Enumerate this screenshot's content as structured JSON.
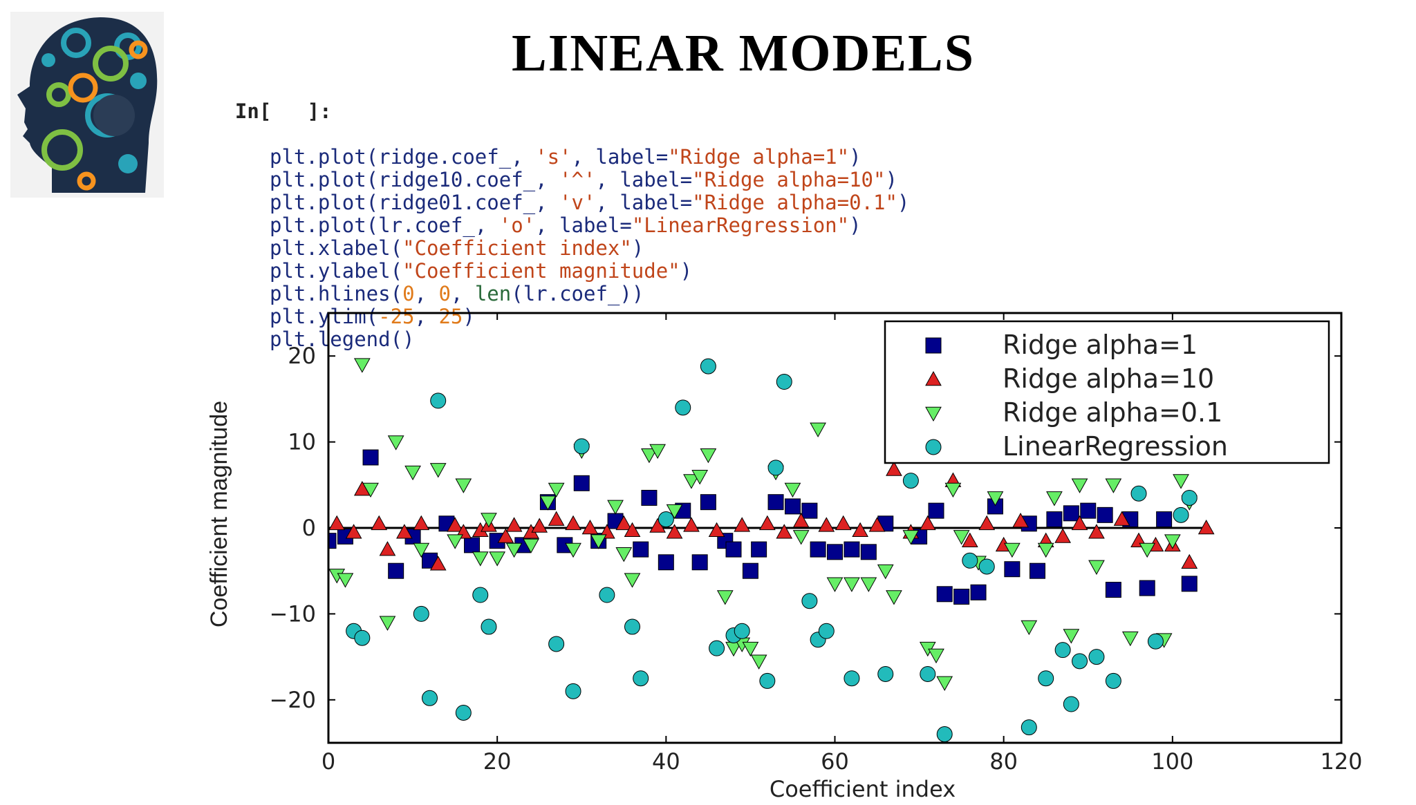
{
  "slide": {
    "title": "LINEAR MODELS"
  },
  "code": {
    "prompt": "In[   ]:",
    "lines": [
      {
        "pre": "plt.plot(ridge.coef_, ",
        "str": "'s'",
        "mid": ", label=",
        "str2": "\"Ridge alpha=1\"",
        "post": ")"
      },
      {
        "pre": "plt.plot(ridge10.coef_, ",
        "str": "'^'",
        "mid": ", label=",
        "str2": "\"Ridge alpha=10\"",
        "post": ")"
      },
      {
        "pre": "plt.plot(ridge01.coef_, ",
        "str": "'v'",
        "mid": ", label=",
        "str2": "\"Ridge alpha=0.1\"",
        "post": ")"
      },
      {
        "pre": "plt.plot(lr.coef_, ",
        "str": "'o'",
        "mid": ", label=",
        "str2": "\"LinearRegression\"",
        "post": ")"
      },
      {
        "pre": "plt.xlabel(",
        "str": "\"Coefficient index\"",
        "mid": "",
        "str2": "",
        "post": ")"
      },
      {
        "pre": "plt.ylabel(",
        "str": "\"Coefficient magnitude\"",
        "mid": "",
        "str2": "",
        "post": ")"
      },
      {
        "pre": "plt.hlines(",
        "num": "0",
        "mid": ", ",
        "num2": "0",
        "mid2": ", ",
        "fn": "len",
        "post": "(lr.coef_))"
      },
      {
        "pre": "plt.ylim(",
        "num": "-25",
        "mid": ", ",
        "num2": "25",
        "post": ")"
      },
      {
        "pre": "plt.legend()",
        "str": "",
        "mid": "",
        "str2": "",
        "post": ""
      }
    ]
  },
  "chart_data": {
    "type": "scatter",
    "xlabel": "Coefficient index",
    "ylabel": "Coefficient magnitude",
    "xlim": [
      0,
      120
    ],
    "ylim": [
      -25,
      25
    ],
    "xticks": [
      0,
      20,
      40,
      60,
      80,
      100,
      120
    ],
    "yticks": [
      -20,
      -10,
      0,
      10,
      20
    ],
    "xtick_labels": [
      "0",
      "20",
      "40",
      "60",
      "80",
      "100",
      "120"
    ],
    "ytick_labels": [
      "−20",
      "−10",
      "0",
      "10",
      "20"
    ],
    "hline": {
      "y": 0,
      "xmin": 0,
      "xmax": 104
    },
    "legend_position": "top-right",
    "series": [
      {
        "name": "Ridge alpha=1",
        "marker": "square",
        "color": "#00008b",
        "x": [
          0,
          2,
          5,
          8,
          10,
          12,
          14,
          17,
          20,
          23,
          26,
          28,
          30,
          32,
          34,
          37,
          38,
          40,
          42,
          44,
          45,
          47,
          48,
          50,
          51,
          53,
          55,
          57,
          58,
          60,
          62,
          64,
          66,
          70,
          72,
          73,
          75,
          77,
          79,
          81,
          83,
          84,
          86,
          88,
          90,
          92,
          93,
          95,
          97,
          99,
          102
        ],
        "y": [
          -1.5,
          -1,
          8.2,
          -5,
          -1,
          -3.8,
          0.5,
          -2,
          -1.5,
          -2,
          3,
          -2,
          5.2,
          -1.5,
          0.8,
          -2.5,
          3.5,
          -4,
          2,
          -4,
          3,
          -1.5,
          -2.5,
          -5,
          -2.5,
          3,
          2.5,
          2,
          -2.5,
          -2.8,
          -2.5,
          -2.8,
          0.5,
          -1,
          2,
          -7.7,
          -8,
          -7.5,
          2.5,
          -4.8,
          0.5,
          -5,
          1,
          1.7,
          2,
          1.5,
          -7.2,
          1,
          -7,
          1,
          -6.5
        ]
      },
      {
        "name": "Ridge alpha=10",
        "marker": "triangle-up",
        "color": "#dd2222",
        "x": [
          1,
          3,
          4,
          6,
          7,
          9,
          11,
          13,
          15,
          16,
          18,
          19,
          21,
          22,
          24,
          25,
          27,
          29,
          31,
          33,
          35,
          36,
          39,
          41,
          43,
          46,
          49,
          52,
          54,
          56,
          59,
          61,
          63,
          65,
          67,
          69,
          71,
          74,
          76,
          78,
          80,
          82,
          85,
          87,
          89,
          91,
          94,
          96,
          98,
          100,
          102,
          104
        ],
        "y": [
          0.5,
          -0.5,
          4.5,
          0.5,
          -2.5,
          -0.5,
          0.5,
          -4.2,
          0.3,
          -0.5,
          -0.3,
          0.3,
          -1,
          0.3,
          -0.5,
          0.2,
          1,
          0.5,
          0,
          -0.5,
          0.5,
          -0.3,
          0.2,
          -0.5,
          0.3,
          -0.3,
          0.3,
          0.5,
          -0.5,
          0.8,
          0.3,
          0.5,
          -0.3,
          0.3,
          6.8,
          -0.5,
          0.5,
          5.5,
          -1.5,
          0.5,
          -2,
          0.8,
          -1.5,
          -1,
          0.5,
          -0.5,
          1,
          -1.5,
          -2,
          -2,
          -4,
          0
        ]
      },
      {
        "name": "Ridge alpha=0.1",
        "marker": "triangle-down",
        "color": "#66ee66",
        "x": [
          1,
          2,
          4,
          5,
          7,
          8,
          10,
          11,
          13,
          15,
          16,
          18,
          19,
          20,
          22,
          24,
          26,
          27,
          29,
          30,
          32,
          34,
          35,
          36,
          38,
          39,
          41,
          43,
          44,
          45,
          47,
          48,
          49,
          50,
          51,
          53,
          55,
          56,
          58,
          60,
          62,
          64,
          66,
          67,
          69,
          71,
          72,
          73,
          74,
          75,
          77,
          79,
          81,
          83,
          85,
          86,
          88,
          89,
          91,
          93,
          95,
          97,
          99,
          100,
          101,
          102
        ],
        "y": [
          -5.5,
          -6,
          19,
          4.5,
          -11,
          10,
          6.5,
          -2.5,
          6.8,
          -1.5,
          5,
          -3.5,
          1,
          -3.5,
          -2.5,
          -2,
          3,
          4.5,
          -2.5,
          9,
          -1.5,
          2.5,
          -3,
          -6,
          8.5,
          9,
          2,
          5.5,
          6,
          8.5,
          -8,
          -14,
          -13.5,
          -14,
          -15.5,
          6.5,
          4.5,
          -1,
          11.5,
          -6.5,
          -6.5,
          -6.5,
          -5,
          -8,
          -1,
          -14,
          -14.8,
          -18,
          4.5,
          -1,
          -4,
          3.5,
          -2.5,
          -11.5,
          -2.5,
          3.5,
          -12.5,
          5,
          -4.5,
          5,
          -12.8,
          -2.5,
          -13,
          -1.5,
          5.5,
          3
        ]
      },
      {
        "name": "LinearRegression",
        "marker": "circle",
        "color": "#22bbbb",
        "x": [
          3,
          4,
          11,
          12,
          13,
          16,
          18,
          19,
          27,
          29,
          30,
          33,
          36,
          37,
          40,
          42,
          45,
          46,
          48,
          49,
          52,
          53,
          54,
          57,
          58,
          59,
          62,
          66,
          69,
          71,
          73,
          76,
          78,
          83,
          85,
          87,
          88,
          89,
          91,
          93,
          96,
          98,
          101,
          102
        ],
        "y": [
          -12,
          -12.8,
          -10,
          -19.8,
          14.8,
          -21.5,
          -7.8,
          -11.5,
          -13.5,
          -19,
          9.5,
          -7.8,
          -11.5,
          -17.5,
          1,
          14,
          18.8,
          -14,
          -12.5,
          -12,
          -17.8,
          7,
          17,
          -8.5,
          -13,
          -12,
          -17.5,
          -17,
          5.5,
          -17,
          -24,
          -3.8,
          -4.5,
          -23.2,
          -17.5,
          -14.2,
          -20.5,
          -15.5,
          -15,
          -17.8,
          4,
          -13.2,
          1.5,
          3.5
        ]
      }
    ]
  }
}
